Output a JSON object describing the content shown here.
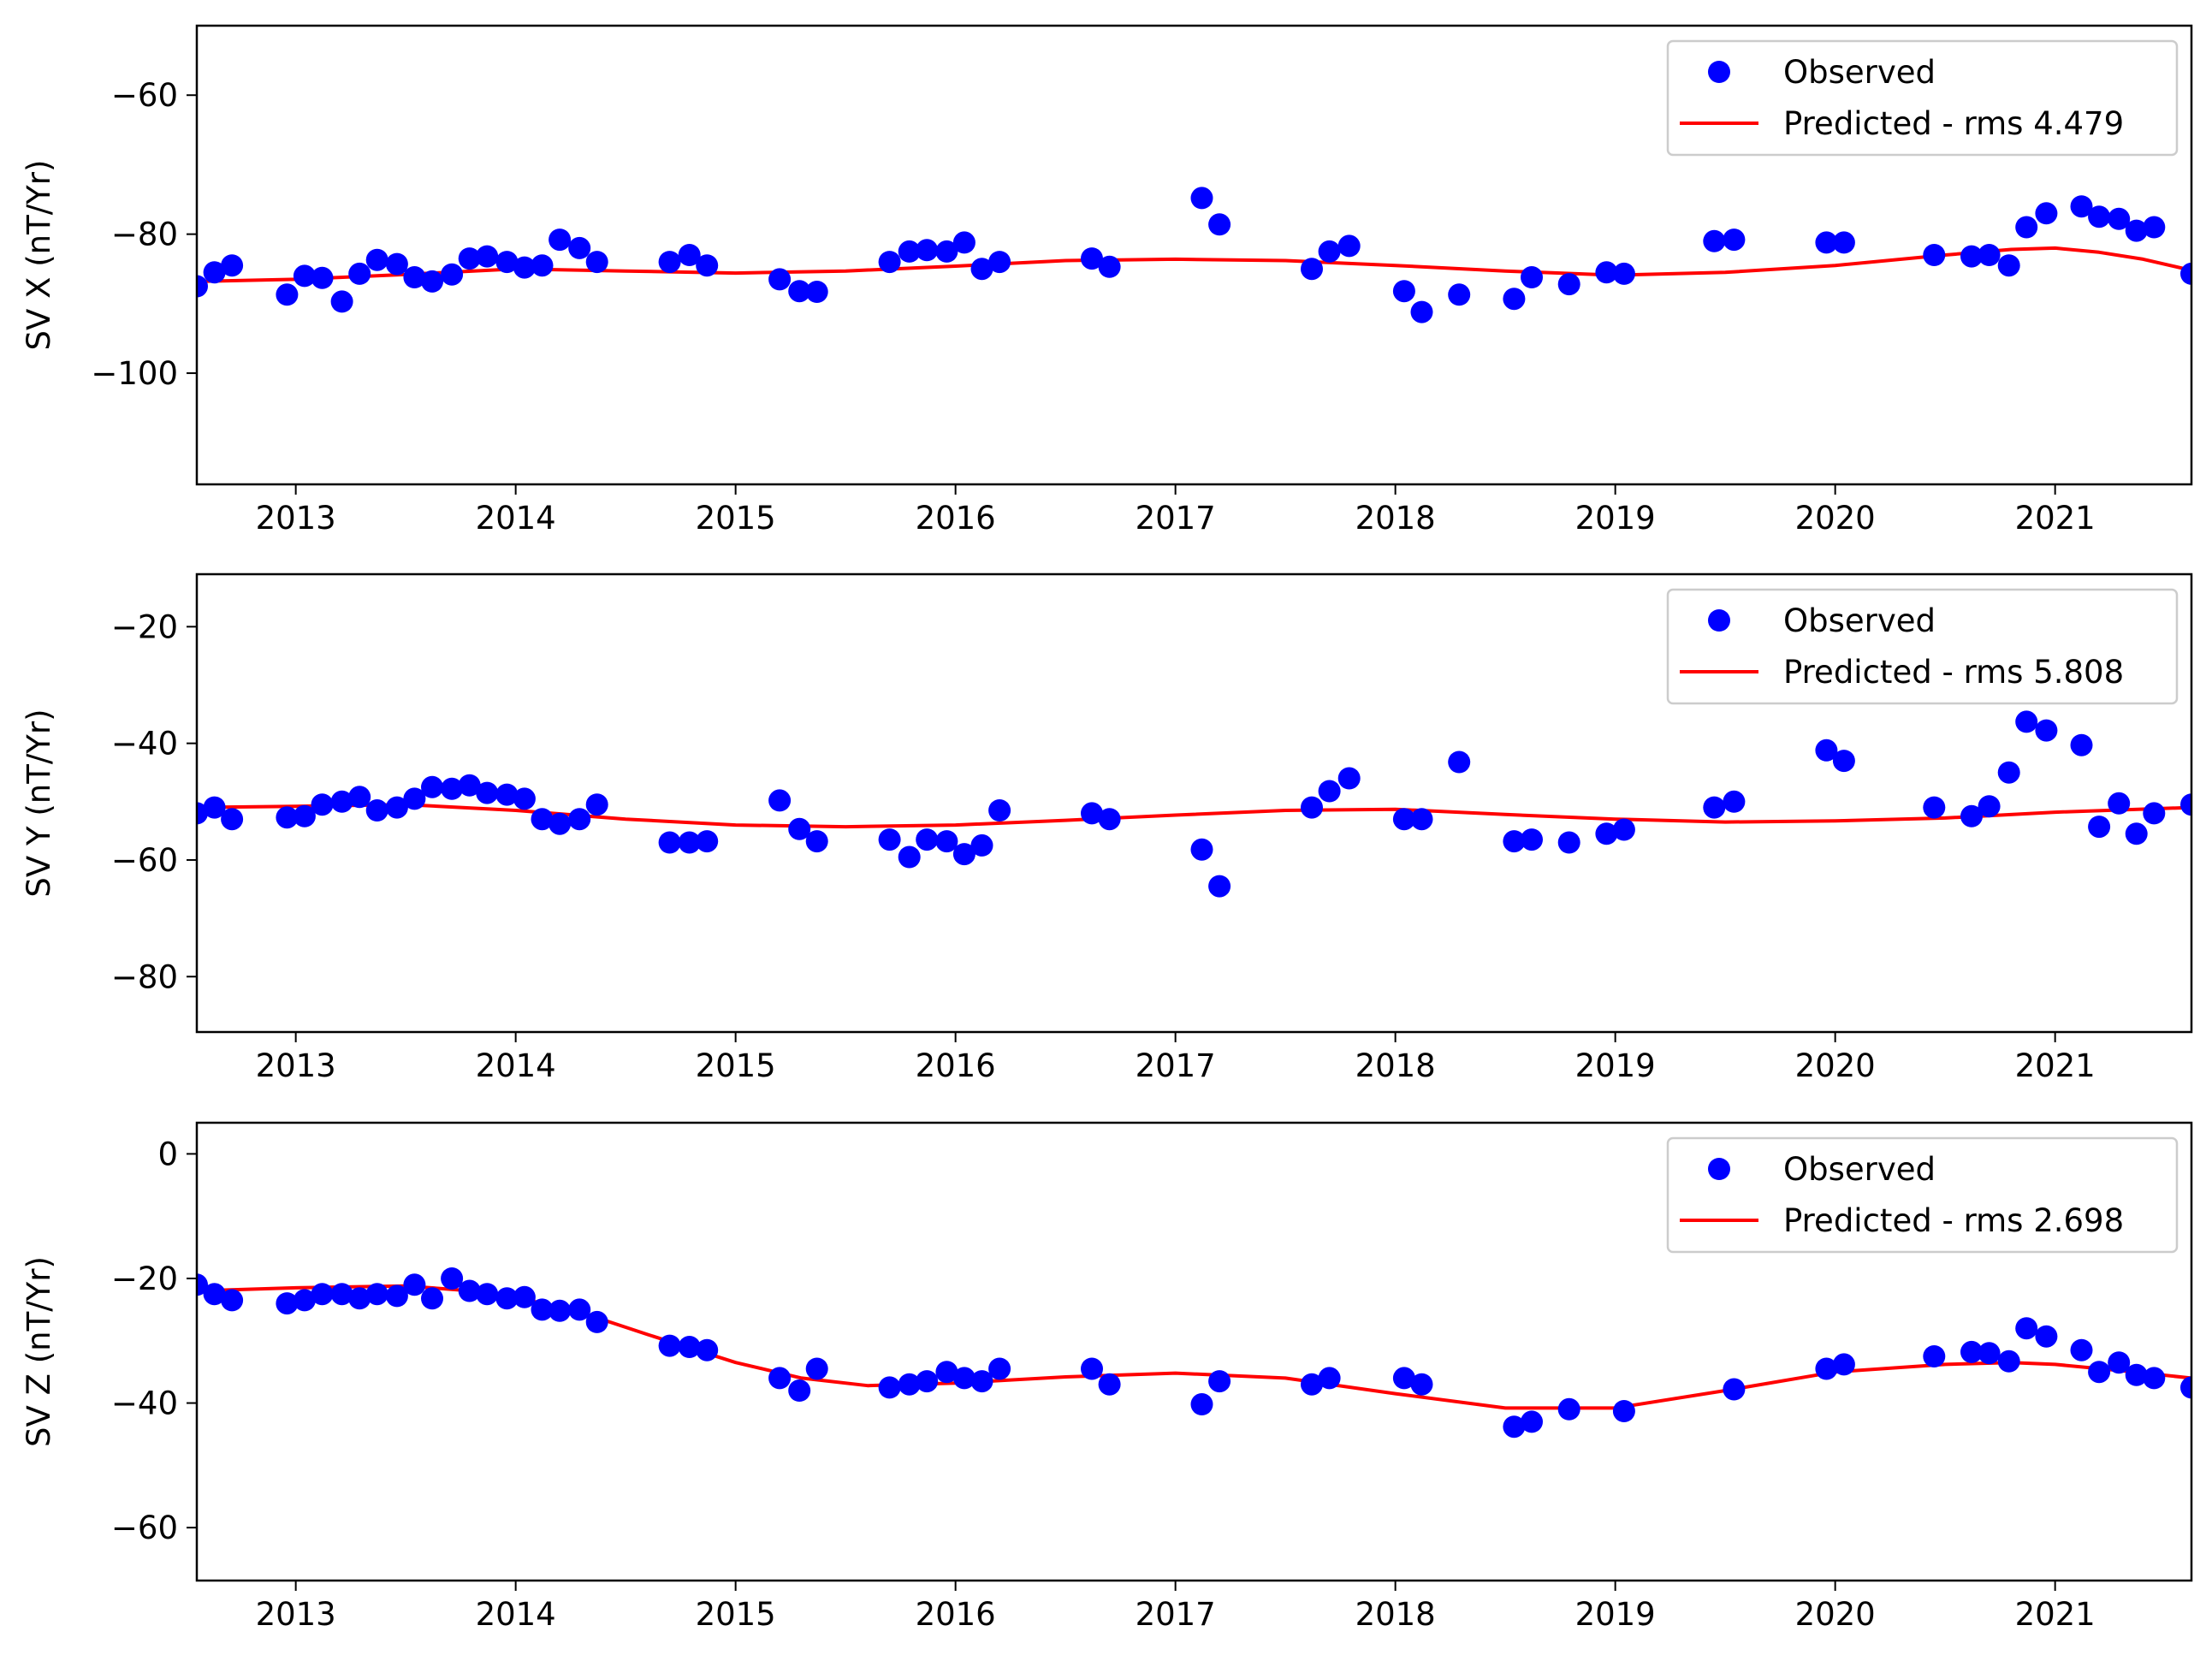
{
  "colors": {
    "observed": "#0000ff",
    "predicted": "#ff0000",
    "axes": "#000000",
    "legend_border": "#cccccc",
    "background": "#ffffff"
  },
  "chart_data": [
    {
      "type": "scatter",
      "title": "",
      "xlabel": "",
      "ylabel": "SV X (nT/Yr)",
      "xlim": [
        2012.55,
        2021.62
      ],
      "ylim": [
        -116,
        -50
      ],
      "xticks": [
        2013,
        2014,
        2015,
        2016,
        2017,
        2018,
        2019,
        2020,
        2021
      ],
      "xtick_labels": [
        "2013",
        "2014",
        "2015",
        "2016",
        "2017",
        "2018",
        "2019",
        "2020",
        "2021"
      ],
      "yticks": [
        -60,
        -80,
        -100
      ],
      "ytick_labels": [
        "−60",
        "−80",
        "−100"
      ],
      "legend": {
        "placement": "top-right",
        "entries": [
          {
            "marker": "dot",
            "label": "Observed"
          },
          {
            "marker": "line",
            "label": "Predicted - rms 4.479"
          }
        ]
      },
      "series": [
        {
          "name": "Observed",
          "kind": "points",
          "x": [
            2012.55,
            2012.63,
            2012.71,
            2012.96,
            2013.04,
            2013.12,
            2013.21,
            2013.29,
            2013.37,
            2013.46,
            2013.54,
            2013.62,
            2013.71,
            2013.79,
            2013.87,
            2013.96,
            2014.04,
            2014.12,
            2014.2,
            2014.29,
            2014.37,
            2014.7,
            2014.79,
            2014.87,
            2015.2,
            2015.29,
            2015.37,
            2015.7,
            2015.79,
            2015.87,
            2015.96,
            2016.04,
            2016.12,
            2016.2,
            2016.62,
            2016.7,
            2017.12,
            2017.2,
            2017.62,
            2017.7,
            2017.79,
            2018.04,
            2018.12,
            2018.29,
            2018.54,
            2018.62,
            2018.79,
            2018.96,
            2019.04,
            2019.45,
            2019.54,
            2019.96,
            2020.04,
            2020.45,
            2020.62,
            2020.7,
            2020.79,
            2020.87,
            2020.96,
            2021.12,
            2021.2,
            2021.29,
            2021.37,
            2021.45,
            2021.62
          ],
          "y": [
            -87.5,
            -85.5,
            -84.5,
            -88.7,
            -86,
            -86.3,
            -89.7,
            -85.7,
            -83.7,
            -84.3,
            -86.2,
            -86.8,
            -85.8,
            -83.5,
            -83.2,
            -84,
            -84.8,
            -84.5,
            -80.8,
            -82,
            -84,
            -84,
            -83,
            -84.5,
            -86.5,
            -88.2,
            -88.3,
            -84,
            -82.5,
            -82.3,
            -82.5,
            -81.2,
            -85,
            -84,
            -83.5,
            -84.7,
            -74.8,
            -78.6,
            -85,
            -82.5,
            -81.7,
            -88.2,
            -91.2,
            -88.7,
            -89.3,
            -86.2,
            -87.2,
            -85.5,
            -85.7,
            -81,
            -80.8,
            -81.2,
            -81.2,
            -83,
            -83.2,
            -83,
            -84.5,
            -79,
            -77,
            -76,
            -77.5,
            -77.8,
            -79.5,
            -79,
            -85.7
          ]
        },
        {
          "name": "Predicted - rms 4.479",
          "kind": "line",
          "x": [
            2012.55,
            2013.0,
            2013.5,
            2014.0,
            2014.5,
            2015.0,
            2015.5,
            2016.0,
            2016.5,
            2017.0,
            2017.5,
            2018.0,
            2018.5,
            2019.0,
            2019.5,
            2020.0,
            2020.5,
            2020.8,
            2021.0,
            2021.2,
            2021.4,
            2021.62
          ],
          "y": [
            -86.8,
            -86.5,
            -85.8,
            -85.0,
            -85.3,
            -85.6,
            -85.3,
            -84.6,
            -83.8,
            -83.6,
            -83.8,
            -84.5,
            -85.3,
            -85.9,
            -85.5,
            -84.5,
            -83.0,
            -82.2,
            -82.0,
            -82.6,
            -83.6,
            -85.2
          ]
        }
      ]
    },
    {
      "type": "scatter",
      "title": "",
      "xlabel": "",
      "ylabel": "SV Y (nT/Yr)",
      "xlim": [
        2012.55,
        2021.62
      ],
      "ylim": [
        -89.5,
        -11
      ],
      "xticks": [
        2013,
        2014,
        2015,
        2016,
        2017,
        2018,
        2019,
        2020,
        2021
      ],
      "xtick_labels": [
        "2013",
        "2014",
        "2015",
        "2016",
        "2017",
        "2018",
        "2019",
        "2020",
        "2021"
      ],
      "yticks": [
        -20,
        -40,
        -60,
        -80
      ],
      "ytick_labels": [
        "−20",
        "−40",
        "−60",
        "−80"
      ],
      "legend": {
        "placement": "top-right",
        "entries": [
          {
            "marker": "dot",
            "label": "Observed"
          },
          {
            "marker": "line",
            "label": "Predicted - rms 5.808"
          }
        ]
      },
      "series": [
        {
          "name": "Observed",
          "kind": "points",
          "x": [
            2012.55,
            2012.63,
            2012.71,
            2012.96,
            2013.04,
            2013.12,
            2013.21,
            2013.29,
            2013.37,
            2013.46,
            2013.54,
            2013.62,
            2013.71,
            2013.79,
            2013.87,
            2013.96,
            2014.04,
            2014.12,
            2014.2,
            2014.29,
            2014.37,
            2014.7,
            2014.79,
            2014.87,
            2015.2,
            2015.29,
            2015.37,
            2015.7,
            2015.79,
            2015.87,
            2015.96,
            2016.04,
            2016.12,
            2016.2,
            2016.62,
            2016.7,
            2017.12,
            2017.2,
            2017.62,
            2017.7,
            2017.79,
            2018.04,
            2018.12,
            2018.29,
            2018.54,
            2018.62,
            2018.79,
            2018.96,
            2019.04,
            2019.45,
            2019.54,
            2019.96,
            2020.04,
            2020.45,
            2020.62,
            2020.7,
            2020.79,
            2020.87,
            2020.96,
            2021.12,
            2021.2,
            2021.29,
            2021.37,
            2021.45,
            2021.62
          ],
          "y": [
            -52,
            -51,
            -53,
            -52.7,
            -52.5,
            -50.5,
            -50,
            -49.2,
            -51.5,
            -51,
            -49.5,
            -47.5,
            -47.8,
            -47.2,
            -48.5,
            -48.8,
            -49.5,
            -53,
            -53.8,
            -53,
            -50.5,
            -57,
            -57,
            -56.8,
            -49.8,
            -54.7,
            -56.8,
            -56.5,
            -59.5,
            -56.5,
            -56.8,
            -59,
            -57.5,
            -51.5,
            -52,
            -53,
            -58.2,
            -64.5,
            -51,
            -48.2,
            -46,
            -53,
            -53,
            -43.2,
            -56.8,
            -56.5,
            -57,
            -55.5,
            -54.8,
            -51,
            -50,
            -41.2,
            -43,
            -51,
            -52.5,
            -50.8,
            -45,
            -36.3,
            -37.8,
            -40.3,
            -54.3,
            -50.3,
            -55.5,
            -52,
            -50.5
          ]
        },
        {
          "name": "Predicted - rms 5.808",
          "kind": "line",
          "x": [
            2012.55,
            2013.0,
            2013.5,
            2014.0,
            2014.5,
            2015.0,
            2015.5,
            2016.0,
            2016.5,
            2017.0,
            2017.5,
            2018.0,
            2018.5,
            2019.0,
            2019.5,
            2020.0,
            2020.5,
            2021.0,
            2021.62
          ],
          "y": [
            -51.0,
            -50.8,
            -50.5,
            -51.5,
            -53.0,
            -54.0,
            -54.3,
            -54.0,
            -53.2,
            -52.3,
            -51.5,
            -51.3,
            -52.2,
            -53.0,
            -53.5,
            -53.3,
            -52.8,
            -51.8,
            -51.0
          ]
        }
      ]
    },
    {
      "type": "scatter",
      "title": "",
      "xlabel": "",
      "ylabel": "SV Z (nT/Yr)",
      "xlim": [
        2012.55,
        2021.62
      ],
      "ylim": [
        -68.5,
        5
      ],
      "xticks": [
        2013,
        2014,
        2015,
        2016,
        2017,
        2018,
        2019,
        2020,
        2021
      ],
      "xtick_labels": [
        "2013",
        "2014",
        "2015",
        "2016",
        "2017",
        "2018",
        "2019",
        "2020",
        "2021"
      ],
      "yticks": [
        0,
        -20,
        -40,
        -60
      ],
      "ytick_labels": [
        "0",
        "−20",
        "−40",
        "−60"
      ],
      "legend": {
        "placement": "top-right",
        "entries": [
          {
            "marker": "dot",
            "label": "Observed"
          },
          {
            "marker": "line",
            "label": "Predicted - rms 2.698"
          }
        ]
      },
      "series": [
        {
          "name": "Observed",
          "kind": "points",
          "x": [
            2012.55,
            2012.63,
            2012.71,
            2012.96,
            2013.04,
            2013.12,
            2013.21,
            2013.29,
            2013.37,
            2013.46,
            2013.54,
            2013.62,
            2013.71,
            2013.79,
            2013.87,
            2013.96,
            2014.04,
            2014.12,
            2014.2,
            2014.29,
            2014.37,
            2014.7,
            2014.79,
            2014.87,
            2015.2,
            2015.29,
            2015.37,
            2015.7,
            2015.79,
            2015.87,
            2015.96,
            2016.04,
            2016.12,
            2016.2,
            2016.62,
            2016.7,
            2017.12,
            2017.2,
            2017.62,
            2017.7,
            2018.04,
            2018.12,
            2018.54,
            2018.62,
            2018.79,
            2019.04,
            2019.54,
            2019.96,
            2020.04,
            2020.45,
            2020.62,
            2020.7,
            2020.79,
            2020.87,
            2020.96,
            2021.12,
            2021.2,
            2021.29,
            2021.37,
            2021.45,
            2021.62
          ],
          "y": [
            -21,
            -22.5,
            -23.5,
            -24,
            -23.5,
            -22.5,
            -22.5,
            -23.2,
            -22.5,
            -22.8,
            -21,
            -23.2,
            -20,
            -22,
            -22.5,
            -23.2,
            -23,
            -25,
            -25.2,
            -25,
            -27,
            -30.8,
            -31,
            -31.5,
            -36,
            -38,
            -34.5,
            -37.5,
            -37,
            -36.5,
            -35,
            -36,
            -36.5,
            -34.5,
            -34.5,
            -37,
            -40.2,
            -36.5,
            -37,
            -36,
            -36,
            -37,
            -43.8,
            -43,
            -41,
            -41.3,
            -37.8,
            -34.5,
            -33.8,
            -32.5,
            -31.8,
            -32,
            -33.3,
            -28,
            -29.3,
            -31.5,
            -35,
            -33.5,
            -35.5,
            -36,
            -37.5
          ]
        },
        {
          "name": "Predicted - rms 2.698",
          "kind": "line",
          "x": [
            2012.55,
            2013.0,
            2013.5,
            2013.8,
            2014.0,
            2014.3,
            2014.6,
            2015.0,
            2015.3,
            2015.6,
            2016.0,
            2016.5,
            2017.0,
            2017.5,
            2018.0,
            2018.5,
            2019.0,
            2019.5,
            2020.0,
            2020.5,
            2020.8,
            2021.0,
            2021.3,
            2021.62
          ],
          "y": [
            -22.0,
            -21.5,
            -21.2,
            -22.0,
            -23.0,
            -25.5,
            -29.0,
            -33.5,
            -36.0,
            -37.2,
            -36.8,
            -35.8,
            -35.2,
            -36.0,
            -38.5,
            -40.8,
            -40.8,
            -38.0,
            -35.0,
            -33.8,
            -33.5,
            -33.8,
            -34.8,
            -36.0
          ]
        }
      ]
    }
  ]
}
